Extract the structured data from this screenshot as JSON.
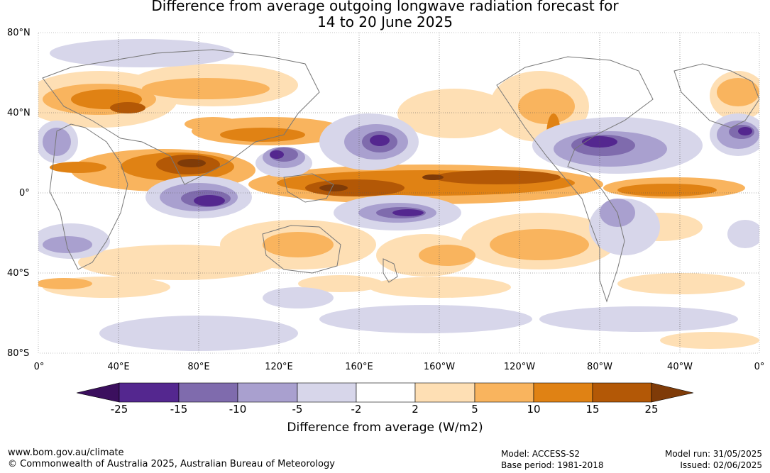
{
  "title": {
    "line1": "Difference from average outgoing longwave radiation forecast for",
    "line2": "14 to 20 June 2025"
  },
  "map": {
    "lat_labels": [
      "80°N",
      "40°N",
      "0°",
      "40°S",
      "80°S"
    ],
    "lon_labels": [
      "0°",
      "40°E",
      "80°E",
      "120°E",
      "160°E",
      "160°W",
      "120°W",
      "80°W",
      "40°W",
      "0°"
    ]
  },
  "colorbar": {
    "title": "Difference from average (W/m2)",
    "ticks": [
      "-25",
      "-15",
      "-10",
      "-5",
      "-2",
      "2",
      "5",
      "10",
      "15",
      "25"
    ],
    "colors": [
      "#3b0f5e",
      "#54278f",
      "#7f6bad",
      "#a9a0cf",
      "#d7d6ea",
      "#ffffff",
      "#fedfb4",
      "#f9b45e",
      "#e08214",
      "#b35806",
      "#7f3b08"
    ]
  },
  "footer": {
    "website": "www.bom.gov.au/climate",
    "copyright": "© Commonwealth of Australia 2025, Australian Bureau of Meteorology",
    "model": "Model: ACCESS-S2",
    "base_period": "Base period: 1981-2018",
    "model_run": "Model run: 31/05/2025",
    "issued": "Issued: 02/06/2025"
  }
}
